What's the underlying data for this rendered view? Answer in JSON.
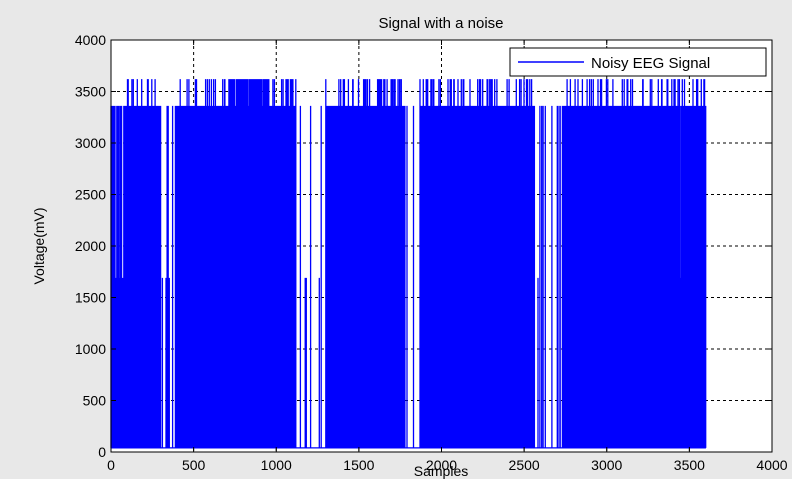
{
  "chart_data": {
    "type": "line",
    "title": "Signal with a noise",
    "xlabel": "Samples",
    "ylabel": "Voltage(mV)",
    "xlim": [
      0,
      4000
    ],
    "ylim": [
      0,
      4000
    ],
    "xticks": [
      0,
      500,
      1000,
      1500,
      2000,
      2500,
      3000,
      3500,
      4000
    ],
    "yticks": [
      0,
      500,
      1000,
      1500,
      2000,
      2500,
      3000,
      3500,
      4000
    ],
    "grid": true,
    "legend_position": "top-right",
    "colors": {
      "series": "#0000ff",
      "background": "#e8e8e8",
      "axes": "#ffffff",
      "grid": "#000000"
    },
    "series": [
      {
        "name": "Noisy EEG Signal",
        "x_range": [
          0,
          3600
        ],
        "levels": [
          40,
          1690,
          3360,
          3620
        ],
        "description_levels": "signal switches rapidly between discrete levels ~40, ~1690, ~3360 and ~3620 mV",
        "segments": [
          {
            "start": 0,
            "end": 20,
            "level": 3360
          },
          {
            "start": 20,
            "end": 80,
            "level": 1690
          },
          {
            "start": 80,
            "end": 300,
            "level": 3360
          },
          {
            "start": 300,
            "end": 390,
            "level": 40
          },
          {
            "start": 390,
            "end": 700,
            "level": 3360
          },
          {
            "start": 700,
            "end": 960,
            "level": 3620
          },
          {
            "start": 960,
            "end": 1120,
            "level": 3360
          },
          {
            "start": 1120,
            "end": 1300,
            "level": 40
          },
          {
            "start": 1300,
            "end": 1530,
            "level": 3360
          },
          {
            "start": 1530,
            "end": 1780,
            "level": 3360
          },
          {
            "start": 1780,
            "end": 1870,
            "level": 40
          },
          {
            "start": 1870,
            "end": 2100,
            "level": 3360
          },
          {
            "start": 2100,
            "end": 2400,
            "level": 3360
          },
          {
            "start": 2400,
            "end": 2560,
            "level": 3360
          },
          {
            "start": 2560,
            "end": 2760,
            "level": 40
          },
          {
            "start": 2760,
            "end": 3200,
            "level": 3360
          },
          {
            "start": 3200,
            "end": 3480,
            "level": 3360
          },
          {
            "start": 3480,
            "end": 3600,
            "level": 3360
          }
        ]
      }
    ]
  }
}
